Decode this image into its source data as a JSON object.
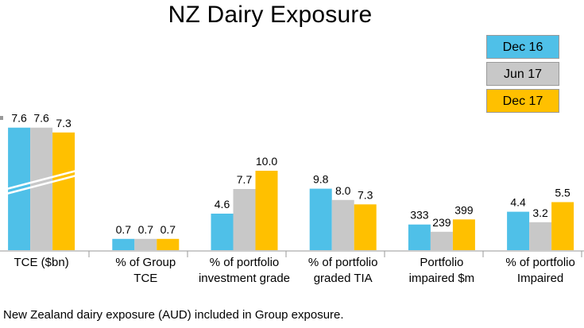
{
  "title": "NZ Dairy Exposure",
  "footnote": "New Zealand dairy exposure (AUD) included in Group exposure.",
  "chart_data": {
    "type": "bar",
    "title": "NZ Dairy Exposure",
    "xlabel": "",
    "ylabel": "",
    "grid": false,
    "legend_position": "top-right",
    "colors": [
      "#4fc0e8",
      "#c8c8c8",
      "#ffc000"
    ],
    "series_names": [
      "Dec 16",
      "Jun 17",
      "Dec 17"
    ],
    "groups": [
      {
        "label": [
          "TCE ($bn)"
        ],
        "values": [
          7.6,
          7.6,
          7.3
        ],
        "value_labels": [
          "7.6",
          "7.6",
          "7.3"
        ],
        "axis_break": true
      },
      {
        "label": [
          "% of Group",
          "TCE"
        ],
        "values": [
          0.7,
          0.7,
          0.7
        ],
        "value_labels": [
          "0.7",
          "0.7",
          "0.7"
        ]
      },
      {
        "label": [
          "% of portfolio",
          "investment grade"
        ],
        "values": [
          4.6,
          7.7,
          10.0
        ],
        "value_labels": [
          "4.6",
          "7.7",
          "10.0"
        ]
      },
      {
        "label": [
          "% of portfolio",
          "graded TIA"
        ],
        "values": [
          9.8,
          8.0,
          7.3
        ],
        "value_labels": [
          "9.8",
          "8.0",
          "7.3"
        ]
      },
      {
        "label": [
          "Portfolio",
          "impaired $m"
        ],
        "values": [
          333,
          239,
          399
        ],
        "value_labels": [
          "333",
          "239",
          "399"
        ]
      },
      {
        "label": [
          "% of portfolio",
          "Impaired"
        ],
        "values": [
          4.4,
          3.2,
          5.5
        ],
        "value_labels": [
          "4.4",
          "3.2",
          "5.5"
        ]
      }
    ]
  }
}
